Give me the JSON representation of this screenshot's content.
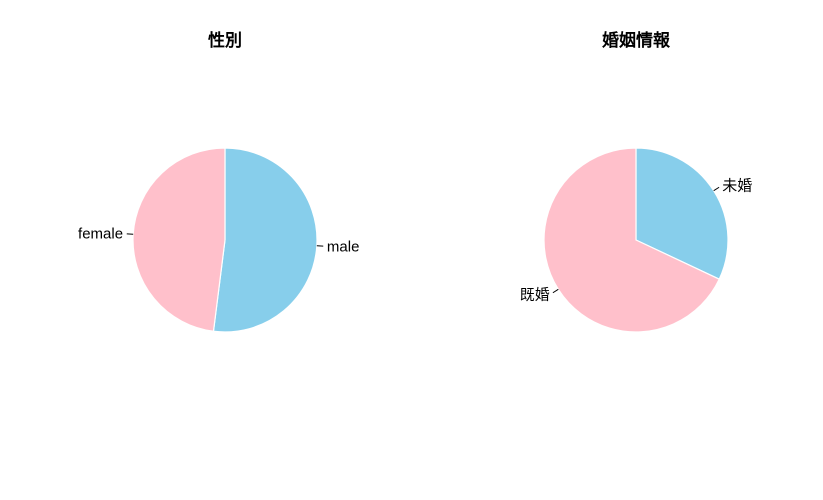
{
  "chart_data": [
    {
      "type": "pie",
      "title": "性別",
      "slices": [
        {
          "label": "male",
          "value": 52,
          "color": "#87CEEB"
        },
        {
          "label": "female",
          "value": 48,
          "color": "#FFC0CB"
        }
      ]
    },
    {
      "type": "pie",
      "title": "婚姻情報",
      "slices": [
        {
          "label": "未婚",
          "value": 32,
          "color": "#87CEEB"
        },
        {
          "label": "既婚",
          "value": 68,
          "color": "#FFC0CB"
        }
      ]
    }
  ]
}
